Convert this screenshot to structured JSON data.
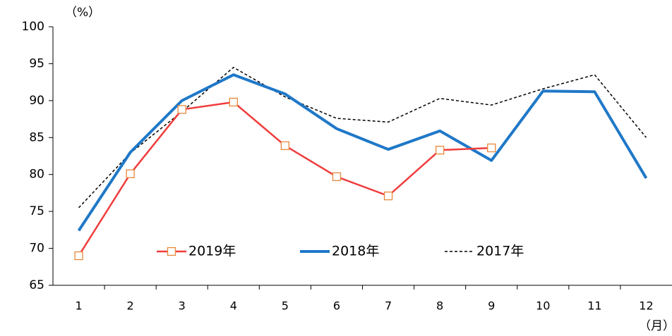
{
  "chart_data": {
    "type": "line",
    "y_unit": "（%）",
    "x_unit": "（月）",
    "categories": [
      "1",
      "2",
      "3",
      "4",
      "5",
      "6",
      "7",
      "8",
      "9",
      "10",
      "11",
      "12"
    ],
    "series": [
      {
        "name": "2019年",
        "color": "#f03c3c",
        "marker_color": "#e8883a",
        "style": "marker",
        "values": [
          69.0,
          80.1,
          88.8,
          89.8,
          83.9,
          79.7,
          77.1,
          83.3,
          83.6,
          null,
          null,
          null
        ]
      },
      {
        "name": "2018年",
        "color": "#1f78c8",
        "style": "thick",
        "values": [
          72.4,
          83.0,
          90.0,
          93.5,
          90.9,
          86.2,
          83.4,
          85.9,
          81.9,
          91.3,
          91.2,
          79.5
        ]
      },
      {
        "name": "2017年",
        "color": "#000000",
        "style": "dashed",
        "values": [
          75.5,
          82.9,
          88.5,
          94.5,
          90.5,
          87.6,
          87.1,
          90.3,
          89.4,
          91.6,
          93.5,
          85.0
        ]
      }
    ],
    "ylim": [
      65,
      100
    ],
    "yticks": [
      65,
      70,
      75,
      80,
      85,
      90,
      95,
      100
    ],
    "grid": false
  }
}
